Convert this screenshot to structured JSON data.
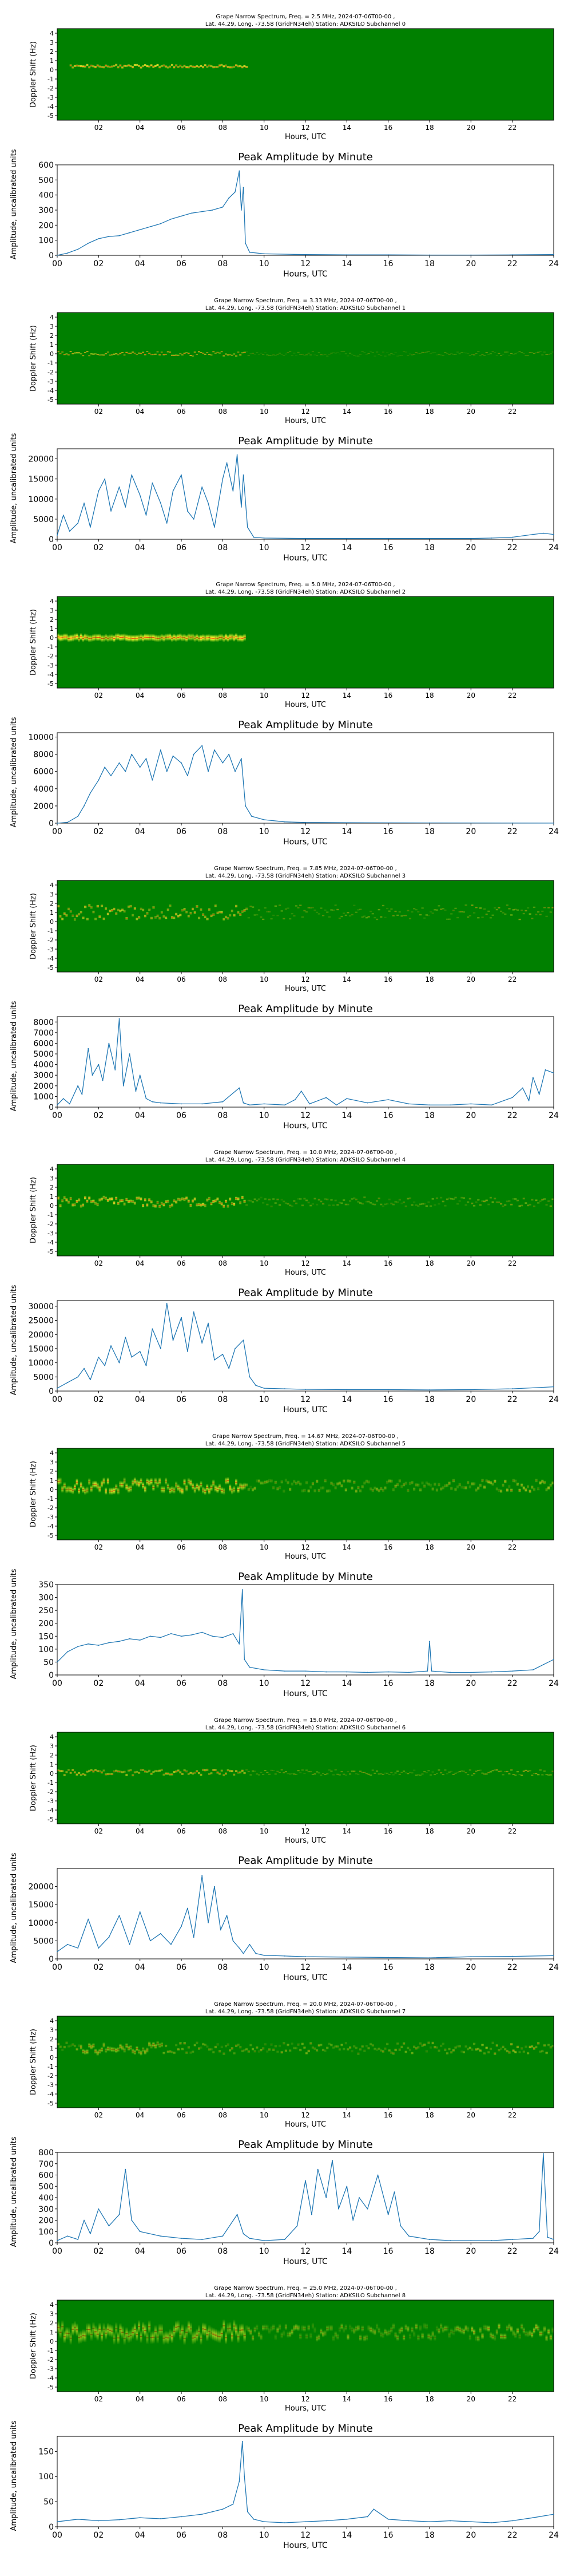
{
  "spectrograms": [
    {
      "title_line1": "Grape Narrow Spectrum, Freq. = 2.5 MHz, 2024-07-06T00-00 ,",
      "title_line2": "Lat. 44.29, Long. -73.58 (GridFN34eh) Station: ADKSILO Subchannel 0",
      "xlabel": "Hours, UTC",
      "ylabel": "Doppler Shift (Hz)"
    },
    {
      "title_line1": "Grape Narrow Spectrum, Freq. = 3.33 MHz, 2024-07-06T00-00 ,",
      "title_line2": "Lat. 44.29, Long. -73.58 (GridFN34eh) Station: ADKSILO Subchannel 1",
      "xlabel": "Hours, UTC",
      "ylabel": "Doppler Shift (Hz)"
    },
    {
      "title_line1": "Grape Narrow Spectrum, Freq. = 5.0 MHz, 2024-07-06T00-00 ,",
      "title_line2": "Lat. 44.29, Long. -73.58 (GridFN34eh) Station: ADKSILO Subchannel 2",
      "xlabel": "Hours, UTC",
      "ylabel": "Doppler Shift (Hz)"
    },
    {
      "title_line1": "Grape Narrow Spectrum, Freq. = 7.85 MHz, 2024-07-06T00-00 ,",
      "title_line2": "Lat. 44.29, Long. -73.58 (GridFN34eh) Station: ADKSILO Subchannel 3",
      "xlabel": "Hours, UTC",
      "ylabel": "Doppler Shift (Hz)"
    },
    {
      "title_line1": "Grape Narrow Spectrum, Freq. = 10.0 MHz, 2024-07-06T00-00 ,",
      "title_line2": "Lat. 44.29, Long. -73.58 (GridFN34eh) Station: ADKSILO Subchannel 4",
      "xlabel": "Hours, UTC",
      "ylabel": "Doppler Shift (Hz)"
    },
    {
      "title_line1": "Grape Narrow Spectrum, Freq. = 14.67 MHz, 2024-07-06T00-00 ,",
      "title_line2": "Lat. 44.29, Long. -73.58 (GridFN34eh) Station: ADKSILO Subchannel 5",
      "xlabel": "Hours, UTC",
      "ylabel": "Doppler Shift (Hz)"
    },
    {
      "title_line1": "Grape Narrow Spectrum, Freq. = 15.0 MHz, 2024-07-06T00-00 ,",
      "title_line2": "Lat. 44.29, Long. -73.58 (GridFN34eh) Station: ADKSILO Subchannel 6",
      "xlabel": "Hours, UTC",
      "ylabel": "Doppler Shift (Hz)"
    },
    {
      "title_line1": "Grape Narrow Spectrum, Freq. = 20.0 MHz, 2024-07-06T00-00 ,",
      "title_line2": "Lat. 44.29, Long. -73.58 (GridFN34eh) Station: ADKSILO Subchannel 7",
      "xlabel": "Hours, UTC",
      "ylabel": "Doppler Shift (Hz)"
    },
    {
      "title_line1": "Grape Narrow Spectrum, Freq. = 25.0 MHz, 2024-07-06T00-00 ,",
      "title_line2": "Lat. 44.29, Long. -73.58 (GridFN34eh) Station: ADKSILO Subchannel 8",
      "xlabel": "Hours, UTC",
      "ylabel": "Doppler Shift (Hz)"
    }
  ],
  "spectrogram_colors": {
    "background": "#008000",
    "mid": "#ffff33",
    "peak": "#ff2a00"
  },
  "spectrogram_y_ticks": [
    "4",
    "3",
    "2",
    "1",
    "0",
    "-1",
    "-2",
    "-3",
    "-4",
    "-5"
  ],
  "spectrogram_x_ticks": [
    "02",
    "04",
    "06",
    "08",
    "10",
    "12",
    "14",
    "16",
    "18",
    "20",
    "22"
  ],
  "amplitude_x_ticks": [
    "00",
    "02",
    "04",
    "06",
    "08",
    "10",
    "12",
    "14",
    "16",
    "18",
    "20",
    "22",
    "24"
  ],
  "line_color": "#1f77b4",
  "chart_data": [
    {
      "type": "line",
      "title": "Peak Amplitude by Minute",
      "xlabel": "Hours, UTC",
      "ylabel": "Amplitude, uncalibrated units",
      "xlim": [
        0,
        24
      ],
      "ylim": [
        0,
        600
      ],
      "y_ticks": [
        "0",
        "100",
        "200",
        "300",
        "400",
        "500",
        "600"
      ],
      "x": [
        0,
        0.5,
        1,
        1.5,
        2,
        2.5,
        3,
        3.5,
        4,
        4.5,
        5,
        5.5,
        6,
        6.5,
        7,
        7.5,
        8,
        8.3,
        8.6,
        8.8,
        8.9,
        9,
        9.1,
        9.3,
        10,
        12,
        14,
        16,
        18,
        20,
        22,
        24
      ],
      "y": [
        0,
        15,
        40,
        80,
        110,
        125,
        130,
        150,
        170,
        190,
        210,
        240,
        260,
        280,
        290,
        300,
        320,
        380,
        420,
        560,
        300,
        450,
        80,
        20,
        10,
        5,
        3,
        3,
        2,
        2,
        3,
        5
      ]
    },
    {
      "type": "line",
      "title": "Peak Amplitude by Minute",
      "xlabel": "Hours, UTC",
      "ylabel": "Amplitude, uncalibrated units",
      "xlim": [
        0,
        24
      ],
      "ylim": [
        0,
        22500
      ],
      "y_ticks": [
        "0",
        "5000",
        "10000",
        "15000",
        "20000"
      ],
      "x": [
        0,
        0.3,
        0.6,
        1,
        1.3,
        1.6,
        2,
        2.3,
        2.6,
        3,
        3.3,
        3.6,
        4,
        4.3,
        4.6,
        5,
        5.3,
        5.6,
        6,
        6.3,
        6.6,
        7,
        7.3,
        7.6,
        8,
        8.2,
        8.5,
        8.7,
        8.9,
        9,
        9.2,
        9.5,
        10,
        12,
        14,
        16,
        18,
        20,
        21,
        22,
        23,
        23.5,
        24
      ],
      "y": [
        1000,
        6000,
        2000,
        4000,
        9000,
        3000,
        12000,
        15000,
        7000,
        13000,
        8000,
        16000,
        11000,
        6000,
        14000,
        9000,
        4000,
        12000,
        16000,
        7000,
        5000,
        13000,
        9000,
        3000,
        15000,
        19000,
        12000,
        21000,
        8000,
        16000,
        3000,
        500,
        300,
        200,
        200,
        200,
        200,
        200,
        300,
        500,
        1200,
        1500,
        1200
      ]
    },
    {
      "type": "line",
      "title": "Peak Amplitude by Minute",
      "xlabel": "Hours, UTC",
      "ylabel": "Amplitude, uncalibrated units",
      "xlim": [
        0,
        24
      ],
      "ylim": [
        0,
        10500
      ],
      "y_ticks": [
        "0",
        "2000",
        "4000",
        "6000",
        "8000",
        "10000"
      ],
      "x": [
        0,
        0.5,
        1,
        1.3,
        1.6,
        2,
        2.3,
        2.6,
        3,
        3.3,
        3.6,
        4,
        4.3,
        4.6,
        5,
        5.3,
        5.6,
        6,
        6.3,
        6.6,
        7,
        7.3,
        7.6,
        8,
        8.3,
        8.6,
        8.9,
        9.1,
        9.4,
        10,
        11,
        12,
        14,
        18,
        22,
        24
      ],
      "y": [
        0,
        100,
        800,
        2000,
        3500,
        5000,
        6500,
        5500,
        7000,
        6000,
        8000,
        6500,
        7500,
        5000,
        8500,
        6000,
        7800,
        7000,
        5500,
        8000,
        9000,
        6000,
        8500,
        7000,
        8000,
        6000,
        7500,
        2000,
        800,
        400,
        150,
        80,
        50,
        30,
        20,
        10
      ]
    },
    {
      "type": "line",
      "title": "Peak Amplitude by Minute",
      "xlabel": "Hours, UTC",
      "ylabel": "Amplitude, uncalibrated units",
      "xlim": [
        0,
        24
      ],
      "ylim": [
        0,
        8500
      ],
      "y_ticks": [
        "0",
        "1000",
        "2000",
        "3000",
        "4000",
        "5000",
        "6000",
        "7000",
        "8000"
      ],
      "x": [
        0,
        0.3,
        0.6,
        1,
        1.2,
        1.5,
        1.7,
        2,
        2.2,
        2.5,
        2.8,
        3,
        3.2,
        3.5,
        3.8,
        4,
        4.3,
        4.6,
        5,
        6,
        7,
        8,
        8.8,
        9,
        9.3,
        10,
        11,
        11.5,
        11.8,
        12.2,
        13,
        13.5,
        14,
        15,
        16,
        17,
        18,
        19,
        20,
        21,
        22,
        22.5,
        22.8,
        23,
        23.3,
        23.6,
        24
      ],
      "y": [
        200,
        800,
        300,
        2000,
        1200,
        5500,
        3000,
        4000,
        2500,
        6000,
        3500,
        8300,
        2000,
        5000,
        1500,
        3000,
        800,
        500,
        400,
        300,
        300,
        500,
        1800,
        400,
        200,
        300,
        200,
        700,
        1500,
        300,
        900,
        200,
        800,
        400,
        700,
        300,
        200,
        200,
        300,
        200,
        900,
        1800,
        600,
        2800,
        1200,
        3500,
        3200
      ]
    },
    {
      "type": "line",
      "title": "Peak Amplitude by Minute",
      "xlabel": "Hours, UTC",
      "ylabel": "Amplitude, uncalibrated units",
      "xlim": [
        0,
        24
      ],
      "ylim": [
        0,
        32000
      ],
      "y_ticks": [
        "0",
        "5000",
        "10000",
        "15000",
        "20000",
        "25000",
        "30000"
      ],
      "x": [
        0,
        0.5,
        1,
        1.3,
        1.6,
        2,
        2.3,
        2.6,
        3,
        3.3,
        3.6,
        4,
        4.3,
        4.6,
        5,
        5.3,
        5.6,
        6,
        6.3,
        6.6,
        7,
        7.3,
        7.6,
        8,
        8.3,
        8.6,
        9,
        9.3,
        9.6,
        10,
        11,
        12,
        14,
        16,
        18,
        20,
        22,
        24
      ],
      "y": [
        1000,
        3000,
        5000,
        8000,
        4000,
        12000,
        9000,
        16000,
        10000,
        19000,
        12000,
        14000,
        9000,
        22000,
        15000,
        31000,
        18000,
        26000,
        14000,
        28000,
        17000,
        24000,
        11000,
        13000,
        8000,
        15000,
        18000,
        5000,
        2000,
        1000,
        800,
        600,
        500,
        500,
        400,
        500,
        800,
        1500
      ]
    },
    {
      "type": "line",
      "title": "Peak Amplitude by Minute",
      "xlabel": "Hours, UTC",
      "ylabel": "Amplitude, uncalibrated units",
      "xlim": [
        0,
        24
      ],
      "ylim": [
        0,
        350
      ],
      "y_ticks": [
        "0",
        "50",
        "100",
        "150",
        "200",
        "250",
        "300",
        "350"
      ],
      "x": [
        0,
        0.5,
        1,
        1.5,
        2,
        2.5,
        3,
        3.5,
        4,
        4.5,
        5,
        5.5,
        6,
        6.5,
        7,
        7.5,
        8,
        8.5,
        8.8,
        8.95,
        9.05,
        9.3,
        10,
        11,
        12,
        13,
        14,
        15,
        16,
        17,
        17.9,
        18,
        18.1,
        19,
        20,
        21,
        22,
        23,
        23.5,
        24
      ],
      "y": [
        50,
        90,
        110,
        120,
        115,
        125,
        130,
        140,
        135,
        150,
        145,
        160,
        150,
        155,
        165,
        150,
        145,
        160,
        120,
        330,
        60,
        30,
        20,
        15,
        15,
        12,
        12,
        10,
        12,
        10,
        15,
        130,
        15,
        10,
        10,
        12,
        15,
        20,
        40,
        60
      ]
    },
    {
      "type": "line",
      "title": "Peak Amplitude by Minute",
      "xlabel": "Hours, UTC",
      "ylabel": "Amplitude, uncalibrated units",
      "xlim": [
        0,
        24
      ],
      "ylim": [
        0,
        25000
      ],
      "y_ticks": [
        "0",
        "5000",
        "10000",
        "15000",
        "20000"
      ],
      "x": [
        0,
        0.5,
        1,
        1.5,
        2,
        2.5,
        3,
        3.5,
        4,
        4.5,
        5,
        5.5,
        6,
        6.3,
        6.6,
        7,
        7.3,
        7.6,
        7.9,
        8.2,
        8.5,
        8.8,
        9,
        9.3,
        9.6,
        10,
        11,
        12,
        14,
        16,
        18,
        20,
        22,
        24
      ],
      "y": [
        2000,
        4000,
        3000,
        11000,
        3000,
        6000,
        12000,
        4000,
        13000,
        5000,
        7000,
        4000,
        9000,
        14000,
        6000,
        23000,
        10000,
        20000,
        8000,
        12000,
        5000,
        3000,
        1500,
        4000,
        1500,
        1000,
        800,
        600,
        500,
        400,
        300,
        600,
        700,
        900
      ]
    },
    {
      "type": "line",
      "title": "Peak Amplitude by Minute",
      "xlabel": "Hours, UTC",
      "ylabel": "Amplitude, uncalibrated units",
      "xlim": [
        0,
        24
      ],
      "ylim": [
        0,
        800
      ],
      "y_ticks": [
        "0",
        "100",
        "200",
        "300",
        "400",
        "500",
        "600",
        "700",
        "800"
      ],
      "x": [
        0,
        0.5,
        1,
        1.3,
        1.6,
        2,
        2.5,
        3,
        3.3,
        3.6,
        4,
        5,
        6,
        7,
        8,
        8.7,
        9,
        9.3,
        10,
        11,
        11.6,
        12,
        12.3,
        12.6,
        13,
        13.3,
        13.6,
        14,
        14.3,
        14.6,
        15,
        15.5,
        16,
        16.3,
        16.6,
        17,
        18,
        19,
        20,
        21,
        22,
        23,
        23.3,
        23.5,
        23.7,
        24
      ],
      "y": [
        20,
        60,
        30,
        200,
        80,
        300,
        150,
        250,
        650,
        200,
        100,
        60,
        40,
        30,
        60,
        250,
        80,
        40,
        20,
        30,
        150,
        550,
        250,
        650,
        400,
        730,
        300,
        500,
        200,
        400,
        300,
        600,
        250,
        450,
        150,
        60,
        30,
        20,
        20,
        20,
        30,
        40,
        100,
        790,
        50,
        30
      ]
    },
    {
      "type": "line",
      "title": "Peak Amplitude by Minute",
      "xlabel": "Hours, UTC",
      "ylabel": "Amplitude, uncalibrated units",
      "xlim": [
        0,
        24
      ],
      "ylim": [
        0,
        180
      ],
      "y_ticks": [
        "0",
        "50",
        "100",
        "150"
      ],
      "x": [
        0,
        1,
        2,
        3,
        4,
        5,
        6,
        7,
        7.5,
        8,
        8.5,
        8.8,
        8.95,
        9.05,
        9.2,
        9.5,
        10,
        11,
        12,
        13,
        14,
        15,
        15.3,
        16,
        17,
        18,
        19,
        20,
        21,
        22,
        23,
        24
      ],
      "y": [
        10,
        15,
        12,
        14,
        18,
        16,
        20,
        25,
        30,
        35,
        45,
        90,
        170,
        100,
        30,
        15,
        10,
        8,
        10,
        12,
        15,
        20,
        35,
        15,
        12,
        10,
        12,
        10,
        8,
        12,
        18,
        25
      ]
    }
  ]
}
